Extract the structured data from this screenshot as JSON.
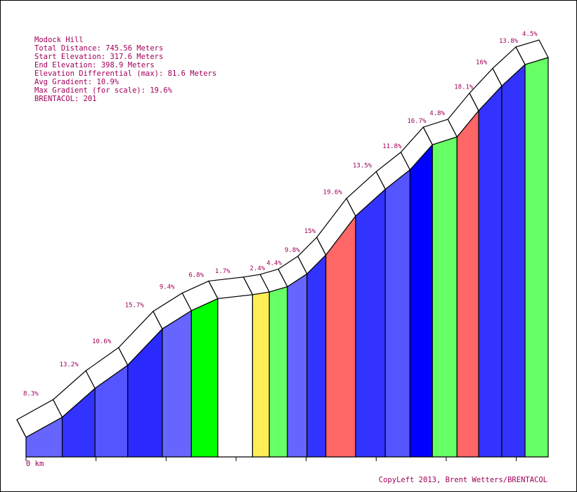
{
  "chart_data": {
    "type": "bar",
    "title": "Modock Hill",
    "info": [
      "Total Distance: 745.56 Meters",
      "Start Elevation: 317.6 Meters",
      "End Elevation: 398.9 Meters",
      "Elevation Differential (max): 81.6 Meters",
      "Avg Gradient: 10.9%",
      "Max Gradient (for scale): 19.6%",
      "BRENTACOL: 201"
    ],
    "x_start_label": "0 km",
    "footer": "CopyLeft 2013, Brent Wetters/BRENTACOL",
    "distance_m": 745.56,
    "start_elevation_m": 317.6,
    "end_elevation_m": 398.9,
    "segments": [
      {
        "start_m": 0,
        "end_m": 45.7,
        "gradient": 8.3,
        "label": "8.3%",
        "color": "#6666ff"
      },
      {
        "start_m": 45.7,
        "end_m": 87.0,
        "gradient": 13.2,
        "label": "13.2%",
        "color": "#3333ff"
      },
      {
        "start_m": 87.0,
        "end_m": 128.3,
        "gradient": 10.6,
        "label": "10.6%",
        "color": "#5555ff"
      },
      {
        "start_m": 128.3,
        "end_m": 171.9,
        "gradient": 15.7,
        "label": "15.7%",
        "color": "#2a2aff"
      },
      {
        "start_m": 171.9,
        "end_m": 208.6,
        "gradient": 9.4,
        "label": "9.4%",
        "color": "#6666ff"
      },
      {
        "start_m": 208.6,
        "end_m": 241.9,
        "gradient": 6.8,
        "label": "6.8%",
        "color": "#00ff00"
      },
      {
        "start_m": 241.9,
        "end_m": 285.8,
        "gradient": 1.7,
        "label": "1.7%",
        "color": "#ffffff"
      },
      {
        "start_m": 285.8,
        "end_m": 306.9,
        "gradient": 2.4,
        "label": "2.4%",
        "color": "#ffee55"
      },
      {
        "start_m": 306.9,
        "end_m": 329.7,
        "gradient": 4.4,
        "label": "4.4%",
        "color": "#66ff66"
      },
      {
        "start_m": 329.7,
        "end_m": 354.4,
        "gradient": 9.8,
        "label": "9.8%",
        "color": "#6666ff"
      },
      {
        "start_m": 354.4,
        "end_m": 378.2,
        "gradient": 15,
        "label": "15%",
        "color": "#3333ff"
      },
      {
        "start_m": 378.2,
        "end_m": 415.7,
        "gradient": 19.6,
        "label": "19.6%",
        "color": "#ff6666"
      },
      {
        "start_m": 415.7,
        "end_m": 453.2,
        "gradient": 13.5,
        "label": "13.5%",
        "color": "#3333ff"
      },
      {
        "start_m": 453.2,
        "end_m": 484.3,
        "gradient": 11.8,
        "label": "11.8%",
        "color": "#5555ff"
      },
      {
        "start_m": 484.3,
        "end_m": 512.6,
        "gradient": 16.7,
        "label": "16.7%",
        "color": "#0000ff"
      },
      {
        "start_m": 512.6,
        "end_m": 543.6,
        "gradient": 4.8,
        "label": "4.8%",
        "color": "#66ff66"
      },
      {
        "start_m": 543.6,
        "end_m": 570.9,
        "gradient": 18.1,
        "label": "18.1%",
        "color": "#ff6666"
      },
      {
        "start_m": 570.9,
        "end_m": 600.1,
        "gradient": 16,
        "label": "16%",
        "color": "#3333ff"
      },
      {
        "start_m": 600.1,
        "end_m": 629.4,
        "gradient": 13.8,
        "label": "13.8%",
        "color": "#3333ff"
      },
      {
        "start_m": 629.4,
        "end_m": 658.6,
        "gradient": 4.5,
        "label": "4.5%",
        "color": "#66ff66"
      }
    ],
    "legend": "none",
    "grid": false
  }
}
